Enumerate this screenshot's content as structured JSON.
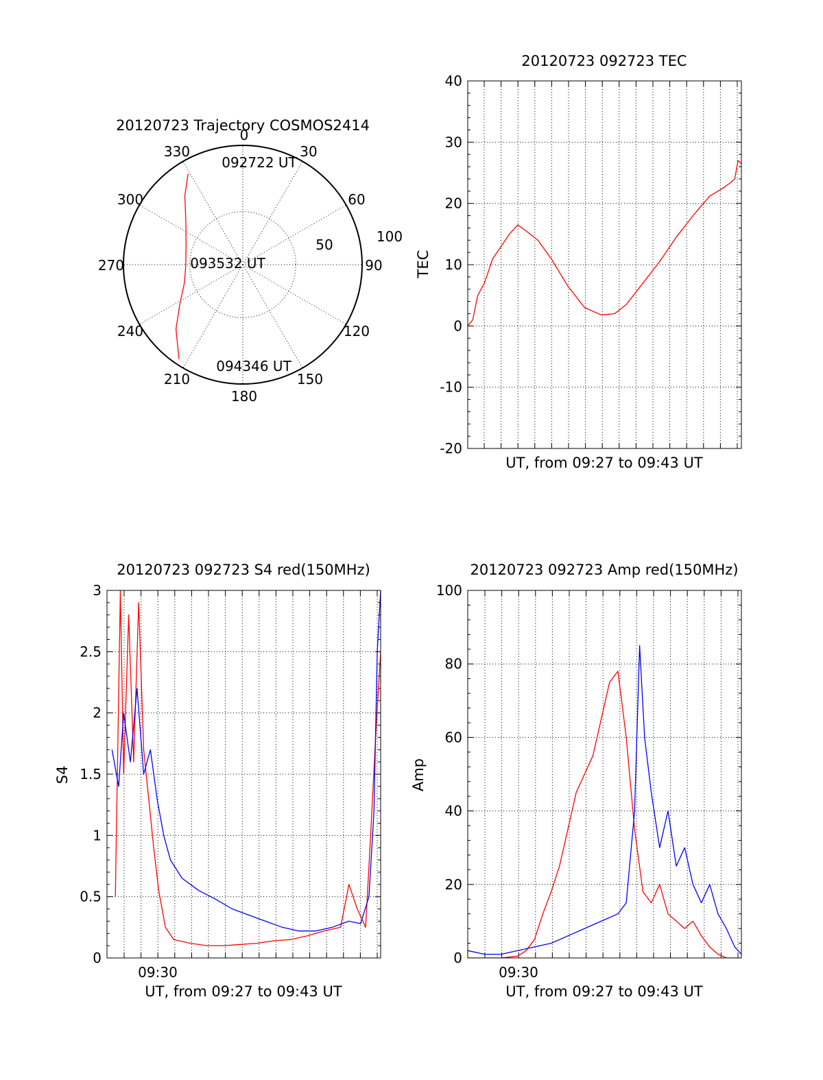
{
  "chart_data": [
    {
      "id": "trajectory",
      "type": "polar",
      "title": "20120723 Trajectory COSMOS2414",
      "azimuth_labels": [
        "0",
        "30",
        "60",
        "90",
        "120",
        "150",
        "180",
        "210",
        "240",
        "270",
        "300",
        "330"
      ],
      "radial_labels": [
        "50",
        "100"
      ],
      "rings_elevation": [
        0,
        50
      ],
      "series": [
        {
          "color": "#ff0000",
          "points": [
            {
              "az": 329,
              "el": 10
            },
            {
              "az": 320,
              "el": 22
            },
            {
              "az": 306,
              "el": 37
            },
            {
              "az": 288,
              "el": 45
            },
            {
              "az": 270,
              "el": 47
            },
            {
              "az": 253,
              "el": 44
            },
            {
              "az": 238,
              "el": 34
            },
            {
              "az": 226,
              "el": 20
            },
            {
              "az": 214,
              "el": 4
            }
          ]
        }
      ],
      "annotations": [
        "092722 UT",
        "093532 UT",
        "094346 UT"
      ]
    },
    {
      "id": "tec",
      "type": "line",
      "title": "20120723 092723 TEC",
      "xlabel": "UT, from 09:27 to 09:43 UT",
      "ylabel": "TEC",
      "xlim": [
        0,
        16.4
      ],
      "ylim": [
        -20,
        40
      ],
      "yticks": [
        "-20",
        "-10",
        "0",
        "10",
        "20",
        "30",
        "40"
      ],
      "grid": true,
      "series": [
        {
          "color": "#ff0000",
          "x": [
            0,
            0.3,
            0.6,
            1.0,
            1.5,
            2.0,
            2.5,
            3.0,
            3.5,
            4.2,
            5.0,
            6.0,
            7.0,
            8.0,
            8.8,
            9.5,
            10.5,
            11.5,
            12.5,
            13.5,
            14.5,
            15.3,
            15.8,
            16.0,
            16.2,
            16.4
          ],
          "y": [
            0,
            1,
            5,
            7,
            11,
            13,
            15,
            16.5,
            15.5,
            14,
            11,
            6.5,
            3,
            1.8,
            2,
            3.5,
            7,
            10.5,
            14.5,
            18,
            21.2,
            22.5,
            23.5,
            24,
            27,
            26.5
          ]
        }
      ]
    },
    {
      "id": "s4",
      "type": "line",
      "title": "20120723 092723 S4 red(150MHz)",
      "xlabel": "UT, from 09:27 to 09:43 UT",
      "ylabel": "S4",
      "xlim": [
        0,
        16.4
      ],
      "ylim": [
        0,
        3
      ],
      "yticks": [
        "0",
        "0.5",
        "1",
        "1.5",
        "2",
        "2.5",
        "3"
      ],
      "xtick_label": "09:30",
      "grid": true,
      "series": [
        {
          "color": "#ff0000",
          "x": [
            0.5,
            0.8,
            1.0,
            1.3,
            1.6,
            1.9,
            2.2,
            2.5,
            2.8,
            3.1,
            3.5,
            4.0,
            5.0,
            6.0,
            7.0,
            8.0,
            9.0,
            10.0,
            11.0,
            12.0,
            13.0,
            14.0,
            14.5,
            15.0,
            15.5,
            15.8,
            16.1,
            16.4
          ],
          "y": [
            0.5,
            3,
            1.5,
            2.8,
            1.6,
            2.9,
            1.7,
            1.3,
            0.9,
            0.55,
            0.25,
            0.15,
            0.12,
            0.1,
            0.1,
            0.11,
            0.12,
            0.14,
            0.15,
            0.18,
            0.22,
            0.25,
            0.6,
            0.4,
            0.25,
            1.0,
            1.8,
            2.5
          ]
        },
        {
          "color": "#0000ff",
          "x": [
            0.3,
            0.7,
            1.0,
            1.4,
            1.8,
            2.2,
            2.6,
            3.0,
            3.4,
            3.8,
            4.5,
            5.5,
            6.5,
            7.5,
            8.5,
            9.5,
            10.5,
            11.5,
            12.5,
            13.5,
            14.5,
            15.2,
            15.7,
            16.0,
            16.2,
            16.4
          ],
          "y": [
            1.7,
            1.4,
            2.0,
            1.6,
            2.2,
            1.5,
            1.7,
            1.3,
            1.0,
            0.8,
            0.65,
            0.55,
            0.48,
            0.4,
            0.35,
            0.3,
            0.25,
            0.22,
            0.22,
            0.25,
            0.3,
            0.28,
            0.5,
            1.2,
            2.5,
            3.0
          ]
        }
      ]
    },
    {
      "id": "amp",
      "type": "line",
      "title": "20120723 092723 Amp red(150MHz)",
      "xlabel": "UT, from 09:27 to 09:43 UT",
      "ylabel": "Amp",
      "xlim": [
        0,
        16.4
      ],
      "ylim": [
        0,
        100
      ],
      "yticks": [
        "0",
        "20",
        "40",
        "60",
        "80",
        "100"
      ],
      "xtick_label": "09:30",
      "grid": true,
      "series": [
        {
          "color": "#ff0000",
          "x": [
            0,
            2,
            3,
            3.5,
            4.0,
            4.5,
            5.0,
            5.5,
            6.0,
            6.5,
            7.0,
            7.5,
            8.0,
            8.5,
            9.0,
            9.5,
            10.0,
            10.5,
            11.0,
            11.5,
            12.0,
            12.5,
            13.0,
            13.5,
            14.0,
            14.5,
            15.0,
            15.5,
            16.4
          ],
          "y": [
            0,
            0,
            0.5,
            2,
            5,
            12,
            18,
            25,
            35,
            45,
            50,
            55,
            65,
            75,
            78,
            60,
            35,
            18,
            15,
            20,
            12,
            10,
            8,
            10,
            6,
            3,
            1,
            0,
            0
          ]
        },
        {
          "color": "#0000ff",
          "x": [
            0,
            1,
            2,
            3,
            4,
            5,
            6,
            7,
            8,
            9,
            9.5,
            10.0,
            10.3,
            10.6,
            11.0,
            11.5,
            12.0,
            12.5,
            13.0,
            13.5,
            14.0,
            14.5,
            15.0,
            15.5,
            16.0,
            16.4
          ],
          "y": [
            2,
            1,
            1,
            2,
            3,
            4,
            6,
            8,
            10,
            12,
            15,
            40,
            85,
            60,
            45,
            30,
            40,
            25,
            30,
            20,
            15,
            20,
            12,
            8,
            3,
            1
          ]
        }
      ]
    }
  ]
}
